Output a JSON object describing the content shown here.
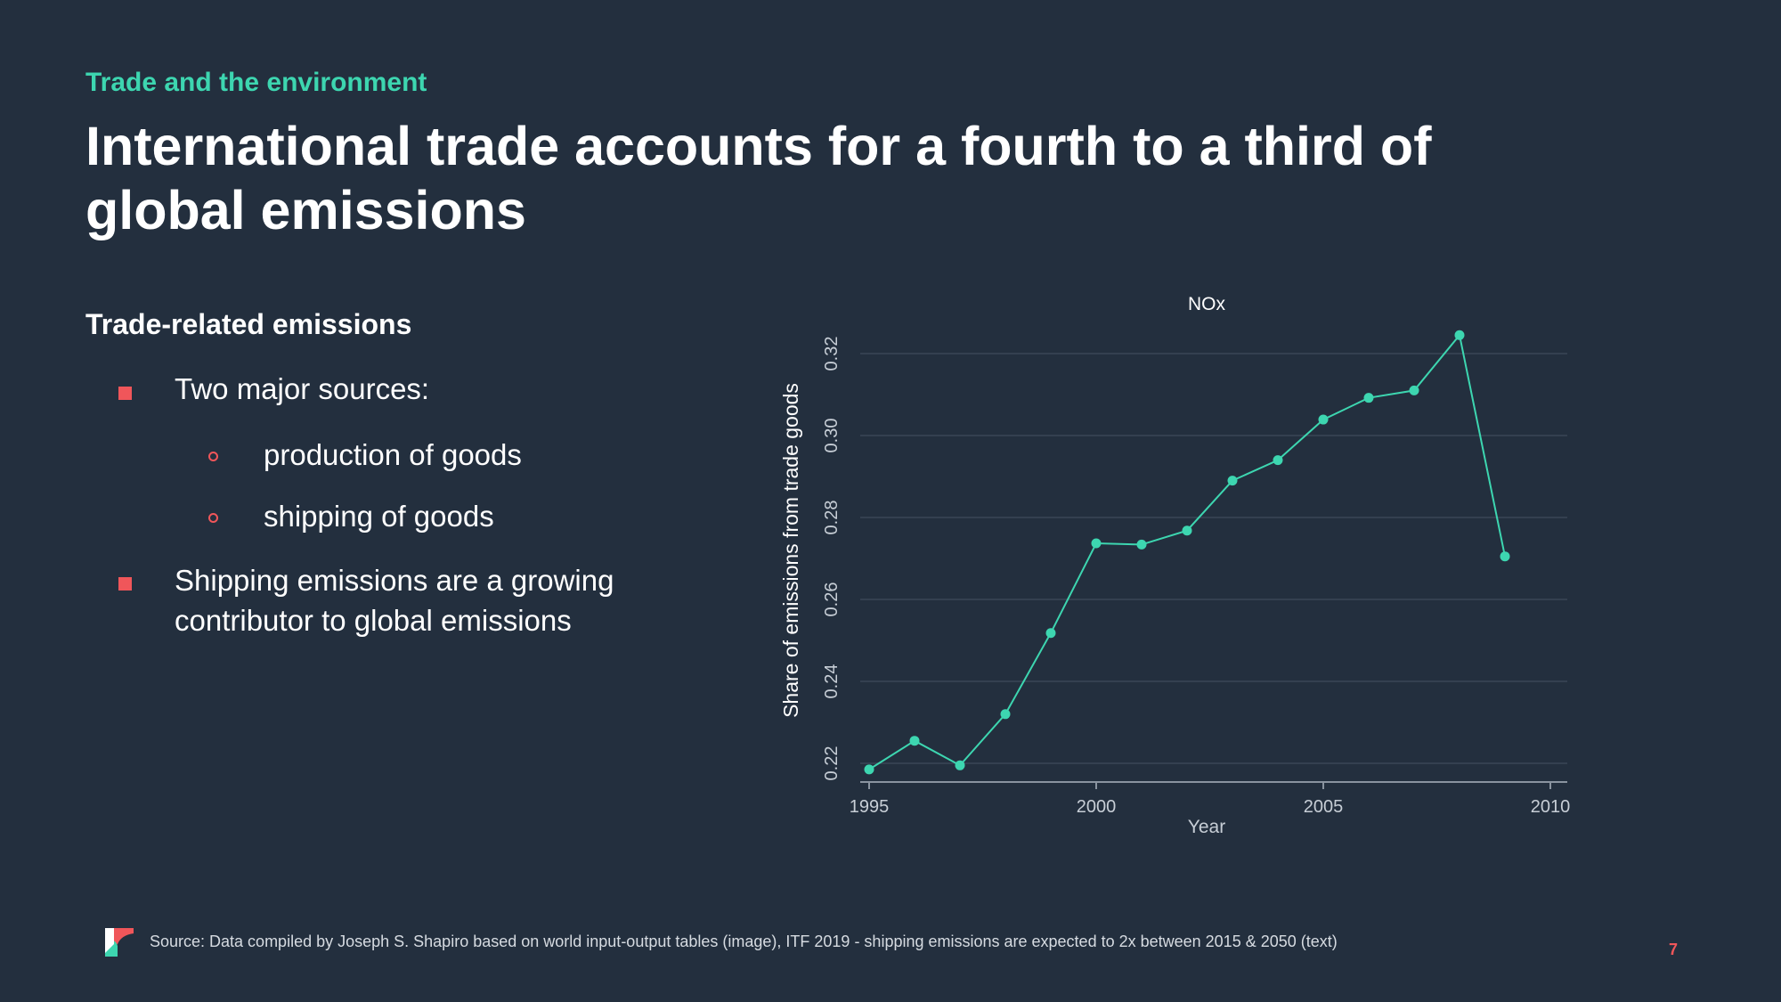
{
  "slide": {
    "kicker": "Trade and the environment",
    "title": "International trade accounts for a fourth to a third of global emissions",
    "page_number": "7"
  },
  "content": {
    "heading": "Trade-related emissions",
    "bullets": [
      {
        "text": "Two major sources:",
        "subitems": [
          "production of goods",
          "shipping of goods"
        ]
      },
      {
        "text": "Shipping emissions are a growing contributor to global emissions",
        "line1": "Shipping emissions are a growing",
        "line2": "contributor to global emissions"
      }
    ]
  },
  "footer": {
    "source": "Source: Data compiled by Joseph S. Shapiro based on world input-output tables (image), ITF 2019 - shipping emissions are expected to 2x between 2015 & 2050  (text)"
  },
  "colors": {
    "background": "#232f3e",
    "accent": "#3dd6b0",
    "bullet": "#f0565a"
  },
  "chart_data": {
    "type": "line",
    "title": "NOx",
    "xlabel": "Year",
    "ylabel": "Share of emissions from trade goods",
    "x": [
      1995,
      1996,
      1997,
      1998,
      1999,
      2000,
      2001,
      2002,
      2003,
      2004,
      2005,
      2006,
      2007,
      2008,
      2009
    ],
    "values": [
      0.2185,
      0.2255,
      0.2195,
      0.232,
      0.2518,
      0.2737,
      0.2734,
      0.2768,
      0.289,
      0.294,
      0.3039,
      0.3092,
      0.311,
      0.3245,
      0.2705
    ],
    "xticks": [
      1995,
      2000,
      2005,
      2010
    ],
    "yticks": [
      0.22,
      0.24,
      0.26,
      0.28,
      0.3,
      0.32
    ],
    "ytick_labels": [
      "0.22",
      "0.24",
      "0.26",
      "0.28",
      "0.30",
      "0.32"
    ],
    "xlim": [
      1995,
      2010
    ],
    "ylim": [
      0.22,
      0.32
    ],
    "grid": true
  }
}
